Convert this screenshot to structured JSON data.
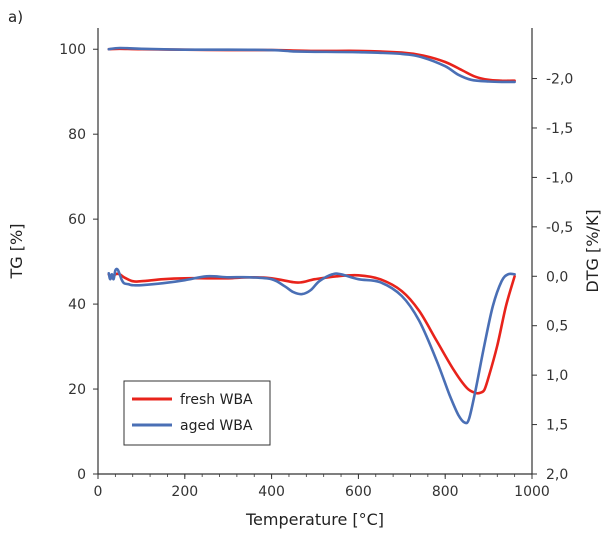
{
  "panel_label": "a)",
  "chart_data": {
    "type": "line",
    "xlabel": "Temperature [°C]",
    "ylabel_left": "TG [%]",
    "ylabel_right": "DTG [%/K]",
    "xlim": [
      0,
      1000
    ],
    "ylim_left": [
      0,
      105
    ],
    "ylim_right": [
      2.0,
      -2.0
    ],
    "x_ticks": [
      0,
      200,
      400,
      600,
      800,
      1000
    ],
    "y_left_ticks": [
      0,
      20,
      40,
      60,
      80,
      100
    ],
    "y_right_ticks": [
      2.0,
      1.5,
      1.0,
      0.5,
      0.0,
      -0.5,
      -1.0,
      -1.5,
      -2.0
    ],
    "y_right_tick_labels": [
      "2,0",
      "1,5",
      "1,0",
      "0,5",
      "0,0",
      "-0,5",
      "-1,0",
      "-1,5",
      "-2,0"
    ],
    "grid": false,
    "legend_position": "bottom-left",
    "colors": {
      "fresh": "#e8231b",
      "aged": "#4a6fb5"
    },
    "series": [
      {
        "name": "fresh WBA",
        "key": "fresh",
        "axis": "left",
        "quantity": "TG",
        "x": [
          25,
          50,
          100,
          200,
          300,
          400,
          500,
          600,
          700,
          750,
          800,
          840,
          870,
          900,
          930,
          960
        ],
        "y": [
          100.0,
          100.1,
          100.0,
          99.9,
          99.8,
          99.8,
          99.6,
          99.6,
          99.2,
          98.5,
          97.0,
          95.0,
          93.5,
          92.8,
          92.6,
          92.6
        ]
      },
      {
        "name": "aged WBA",
        "key": "aged",
        "axis": "left",
        "quantity": "TG",
        "x": [
          25,
          50,
          100,
          200,
          300,
          400,
          450,
          500,
          600,
          700,
          750,
          800,
          830,
          860,
          900,
          930,
          960
        ],
        "y": [
          100.0,
          100.3,
          100.1,
          99.9,
          99.9,
          99.8,
          99.5,
          99.4,
          99.3,
          98.9,
          98.0,
          96.0,
          94.0,
          92.8,
          92.4,
          92.3,
          92.3
        ]
      },
      {
        "name": "fresh WBA",
        "key": "fresh",
        "axis": "right",
        "quantity": "DTG",
        "x": [
          25,
          30,
          40,
          50,
          60,
          80,
          100,
          150,
          200,
          250,
          300,
          350,
          400,
          450,
          470,
          500,
          550,
          600,
          650,
          700,
          740,
          780,
          820,
          850,
          870,
          880,
          890,
          900,
          920,
          940,
          960
        ],
        "y": [
          -0.02,
          0.02,
          -0.02,
          -0.02,
          0.01,
          0.05,
          0.05,
          0.03,
          0.02,
          0.02,
          0.02,
          0.01,
          0.02,
          0.06,
          0.06,
          0.03,
          0.0,
          -0.01,
          0.03,
          0.15,
          0.35,
          0.65,
          0.95,
          1.13,
          1.18,
          1.18,
          1.15,
          1.02,
          0.7,
          0.3,
          0.0
        ]
      },
      {
        "name": "aged WBA",
        "key": "aged",
        "axis": "right",
        "quantity": "DTG",
        "x": [
          25,
          28,
          32,
          36,
          40,
          45,
          50,
          55,
          60,
          70,
          80,
          100,
          150,
          200,
          250,
          300,
          350,
          400,
          430,
          450,
          470,
          490,
          510,
          540,
          560,
          600,
          650,
          700,
          740,
          780,
          810,
          830,
          845,
          855,
          870,
          890,
          910,
          930,
          945,
          960
        ],
        "y": [
          -0.03,
          0.03,
          -0.02,
          0.03,
          -0.06,
          -0.07,
          -0.02,
          0.04,
          0.07,
          0.08,
          0.09,
          0.09,
          0.07,
          0.04,
          0.0,
          0.01,
          0.01,
          0.03,
          0.1,
          0.16,
          0.18,
          0.14,
          0.05,
          -0.02,
          -0.02,
          0.03,
          0.06,
          0.2,
          0.45,
          0.85,
          1.2,
          1.4,
          1.48,
          1.44,
          1.15,
          0.7,
          0.3,
          0.05,
          -0.02,
          -0.02
        ]
      }
    ]
  }
}
